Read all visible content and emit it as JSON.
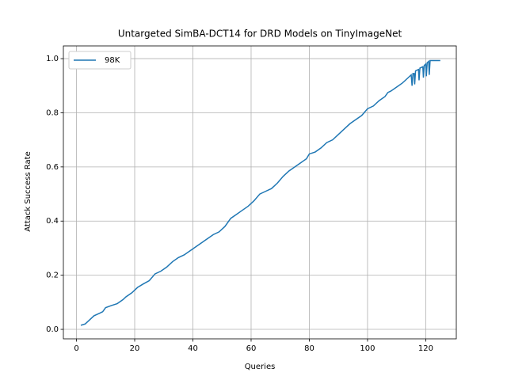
{
  "chart_data": {
    "type": "line",
    "title": "Untargeted SimBA-DCT14 for DRD Models on TinyImageNet",
    "x_label": "Queries",
    "y_label": "Attack Success Rate",
    "xlim": [
      -4.5,
      130.5
    ],
    "xticks": [
      0,
      20,
      40,
      60,
      80,
      100,
      120
    ],
    "ylim": [
      -0.035,
      1.047
    ],
    "yticks": [
      0.0,
      0.2,
      0.4,
      0.6,
      0.8,
      1.0
    ],
    "yticks_labels": [
      "0.0",
      "0.2",
      "0.4",
      "0.6",
      "0.8",
      "1.0"
    ],
    "grid": true,
    "legend": "upper left",
    "series": [
      {
        "name": "98K",
        "color": "#1f77b4",
        "x": [
          1.5,
          3,
          4,
          6,
          8,
          9,
          10,
          12,
          14,
          16,
          17,
          19,
          21,
          23,
          25,
          27,
          29,
          31,
          33,
          35,
          37,
          39,
          41,
          43,
          45,
          47,
          49,
          51,
          53,
          55,
          57,
          59,
          61,
          63,
          65,
          67,
          69,
          71,
          73,
          75,
          77,
          79,
          80,
          82,
          84,
          86,
          88,
          90,
          92,
          94,
          96,
          98,
          100,
          102,
          104,
          106,
          107,
          108,
          110,
          112,
          114,
          115,
          115.3,
          115.6,
          116,
          116.2,
          116.5,
          117.5,
          117.7,
          118,
          119,
          119.2,
          119.5,
          120,
          120.2,
          120.5,
          121,
          121.2,
          121.5,
          125
        ],
        "values": [
          0.015,
          0.02,
          0.03,
          0.05,
          0.06,
          0.065,
          0.08,
          0.088,
          0.095,
          0.11,
          0.12,
          0.135,
          0.155,
          0.168,
          0.18,
          0.205,
          0.215,
          0.23,
          0.25,
          0.265,
          0.275,
          0.29,
          0.305,
          0.32,
          0.335,
          0.35,
          0.36,
          0.38,
          0.41,
          0.425,
          0.44,
          0.455,
          0.475,
          0.5,
          0.51,
          0.52,
          0.54,
          0.565,
          0.585,
          0.6,
          0.615,
          0.63,
          0.648,
          0.655,
          0.67,
          0.69,
          0.7,
          0.72,
          0.74,
          0.76,
          0.775,
          0.79,
          0.815,
          0.825,
          0.845,
          0.86,
          0.875,
          0.88,
          0.895,
          0.91,
          0.93,
          0.94,
          0.9,
          0.945,
          0.945,
          0.905,
          0.955,
          0.96,
          0.92,
          0.965,
          0.97,
          0.93,
          0.975,
          0.98,
          0.935,
          0.985,
          0.99,
          0.94,
          0.993,
          0.993
        ]
      }
    ]
  }
}
